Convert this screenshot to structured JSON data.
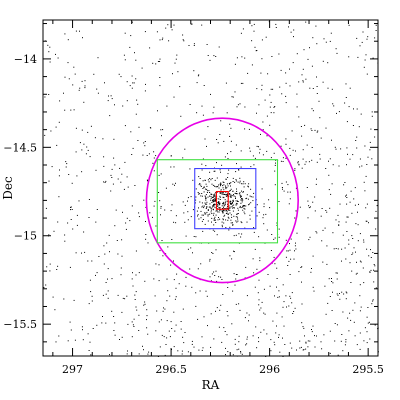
{
  "chart_data": {
    "type": "scatter",
    "title": "",
    "xlabel": "RA",
    "ylabel": "Dec",
    "xlim": [
      297.15,
      295.45
    ],
    "ylim": [
      -15.68,
      -13.78
    ],
    "x_ticks": [
      297,
      296.5,
      296,
      295.5
    ],
    "x_tick_labels": [
      "297",
      "296.5",
      "296",
      "295.5"
    ],
    "y_ticks": [
      -14,
      -14.5,
      -15,
      -15.5
    ],
    "y_tick_labels": [
      "−14",
      "−14.5",
      "−15",
      "−15.5"
    ],
    "grid": false,
    "field_stars": {
      "description_units": "RA/Dec degrees",
      "count": 1800,
      "ra_range": [
        297.15,
        295.45
      ],
      "dec_range": [
        -15.68,
        -13.78
      ],
      "color": "#000000"
    },
    "cluster": {
      "center_ra": 296.24,
      "center_dec": -14.8,
      "count": 450,
      "sigma_deg": 0.07,
      "color": "#000000"
    },
    "overlays": [
      {
        "shape": "ellipse",
        "center_ra": 296.24,
        "center_dec": -14.8,
        "semi_axis_ra": 0.385,
        "semi_axis_dec": 0.465,
        "color": "#e600e6"
      },
      {
        "shape": "rectangle",
        "ra_min": 295.96,
        "ra_max": 296.57,
        "dec_min": -15.04,
        "dec_max": -14.57,
        "color": "#40e040"
      },
      {
        "shape": "rectangle",
        "ra_min": 296.07,
        "ra_max": 296.38,
        "dec_min": -14.96,
        "dec_max": -14.62,
        "color": "#4040ff"
      },
      {
        "shape": "rectangle",
        "ra_min": 296.21,
        "ra_max": 296.27,
        "dec_min": -14.85,
        "dec_max": -14.75,
        "color": "#ff0000"
      }
    ]
  }
}
